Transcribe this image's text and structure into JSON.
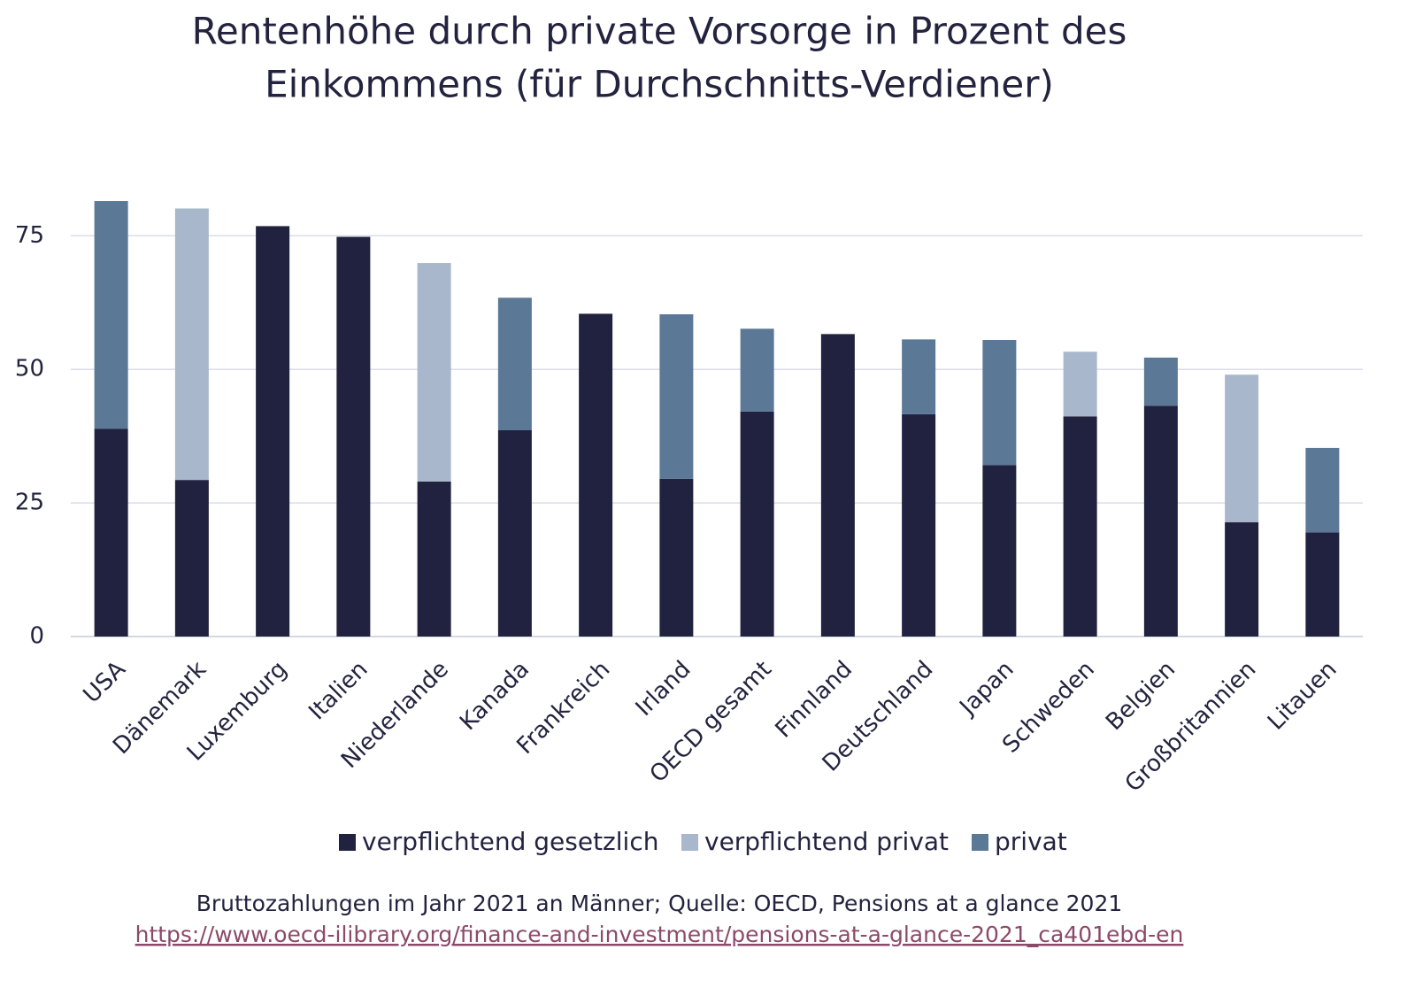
{
  "chart_data": {
    "type": "stacked_bar",
    "title": [
      "Rentenhöhe durch private Vorsorge in Prozent des",
      "Einkommens (für Durchschnitts-Verdiener)"
    ],
    "categories": [
      "USA",
      "Dänemark",
      "Luxemburg",
      "Italien",
      "Niederlande",
      "Kanada",
      "Frankreich",
      "Irland",
      "OECD gesamt",
      "Finnland",
      "Deutschland",
      "Japan",
      "Schweden",
      "Belgien",
      "Großbritannien",
      "Litauen"
    ],
    "series": [
      {
        "name": "verpflichtend gesetzlich",
        "color": "#20223f",
        "values": [
          38.9,
          29.3,
          76.8,
          74.8,
          29.0,
          38.6,
          60.4,
          29.5,
          42.1,
          56.6,
          41.6,
          32.1,
          41.2,
          43.2,
          21.4,
          19.5
        ]
      },
      {
        "name": "verpflichtend privat",
        "color": "#a8b7cb",
        "values": [
          null,
          50.8,
          null,
          null,
          40.9,
          null,
          null,
          null,
          null,
          null,
          null,
          null,
          12.1,
          null,
          27.6,
          null
        ]
      },
      {
        "name": "privat",
        "color": "#5b7897",
        "values": [
          42.6,
          null,
          null,
          null,
          null,
          24.8,
          null,
          30.8,
          15.5,
          null,
          14.0,
          23.4,
          null,
          9.0,
          null,
          15.8
        ]
      }
    ],
    "ylim": [
      0,
      83
    ],
    "yticks": [
      0,
      25,
      50,
      75
    ],
    "grid": true,
    "footer": "Bruttozahlungen im Jahr 2021 an Männer; Quelle: OECD, Pensions at a glance 2021",
    "link": "https://www.oecd-ilibrary.org/finance-and-investment/pensions-at-a-glance-2021_ca401ebd-en"
  }
}
